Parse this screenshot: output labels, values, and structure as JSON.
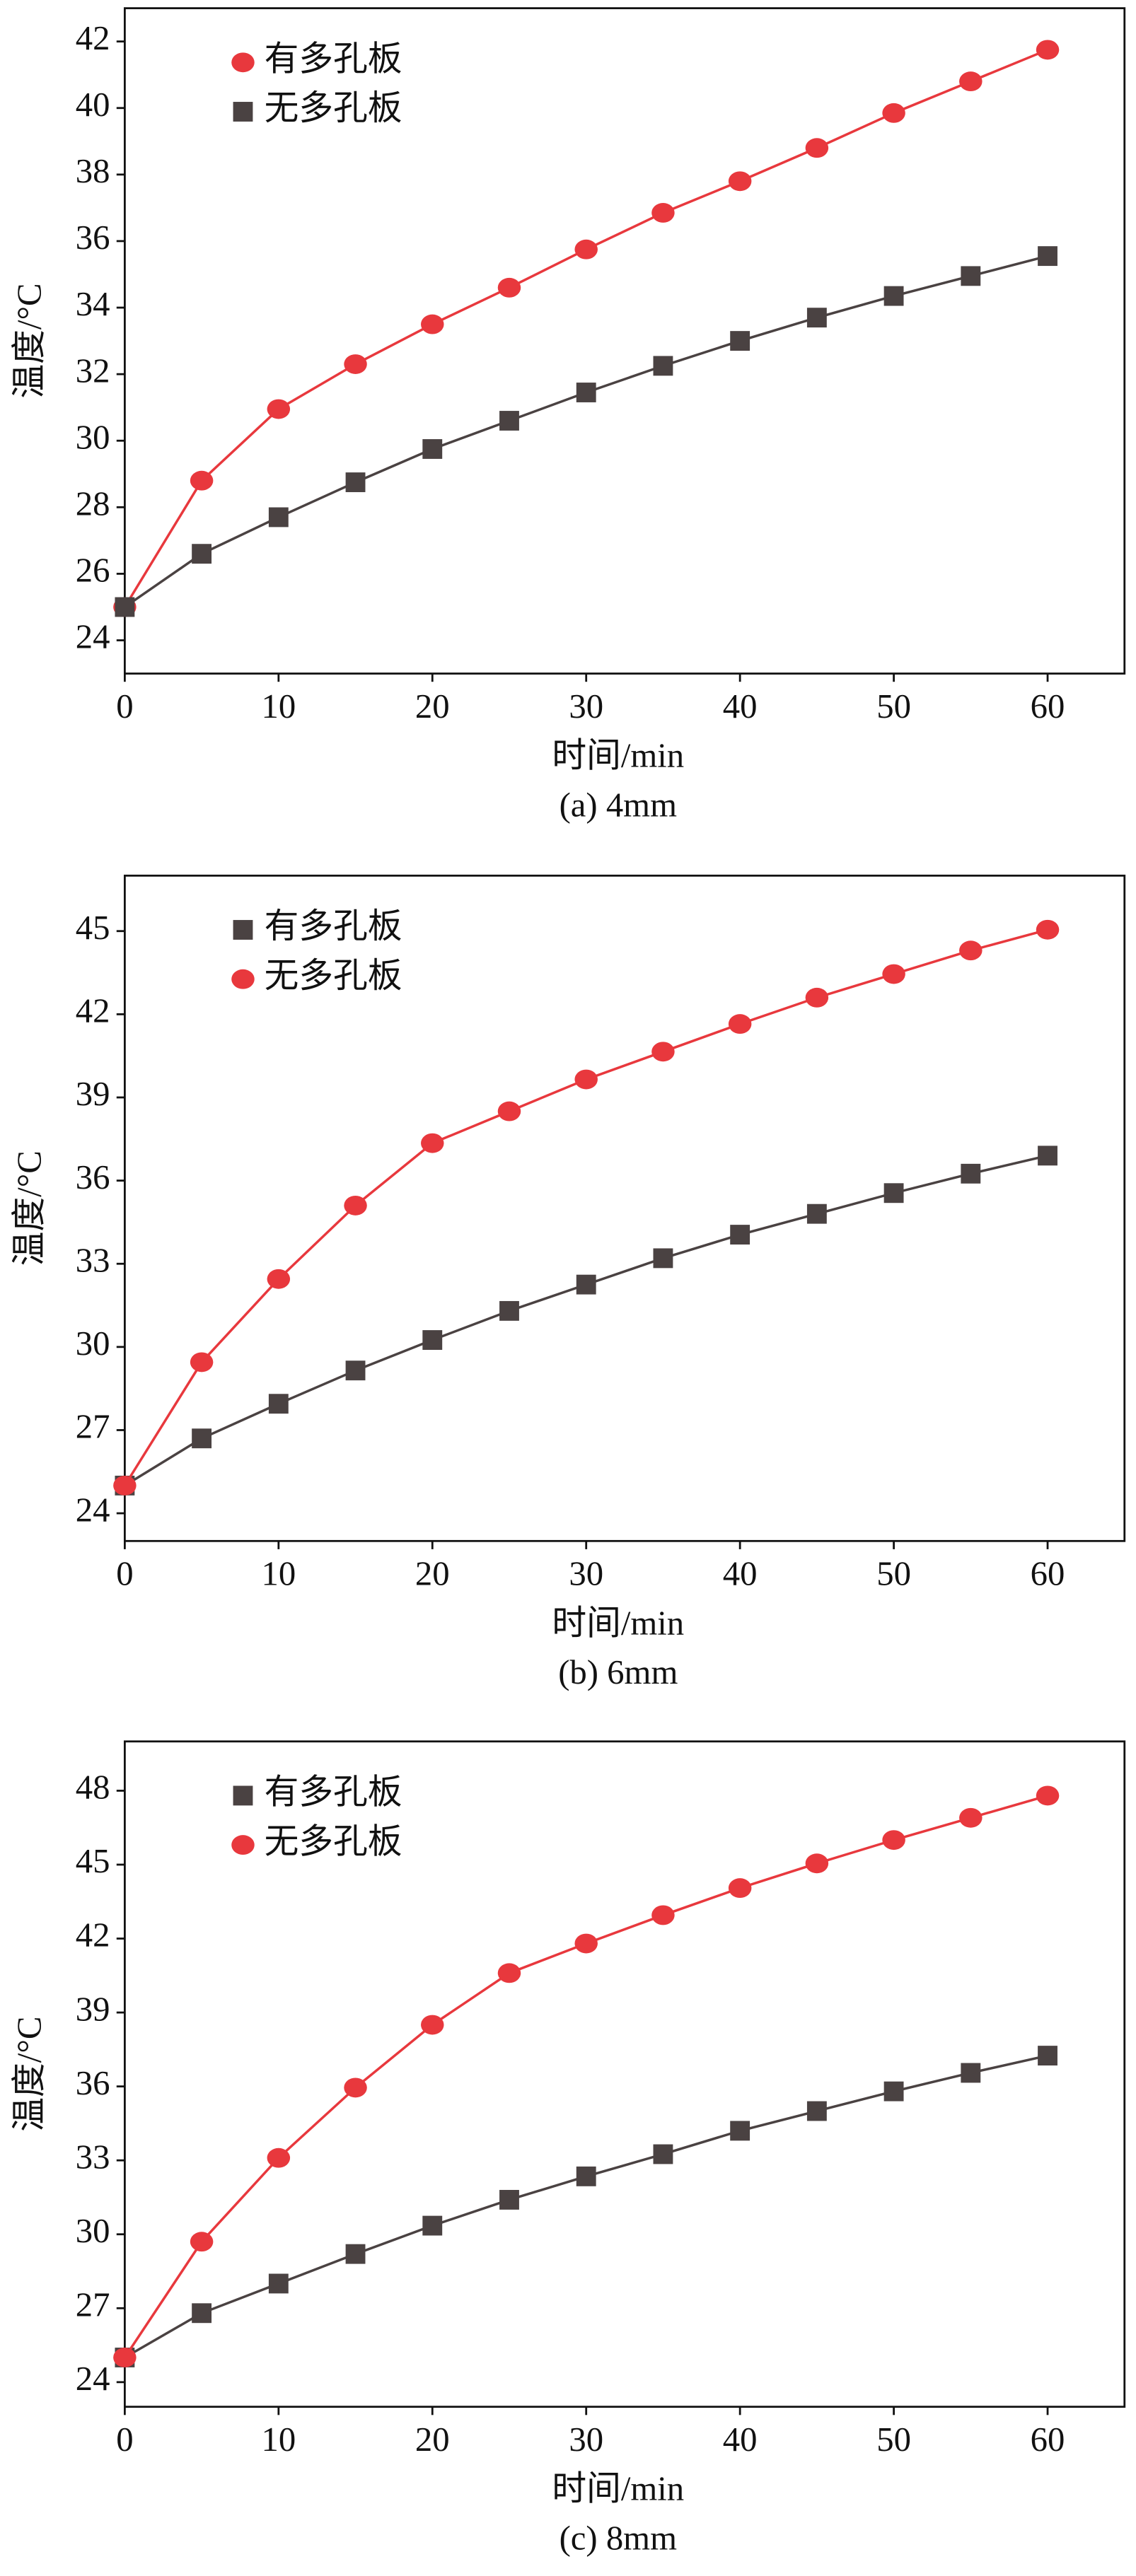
{
  "chart_data": [
    {
      "type": "line",
      "caption": "(a) 4mm",
      "xlabel": "时间/min",
      "ylabel": "温度/°C",
      "x": [
        0,
        5,
        10,
        15,
        20,
        25,
        30,
        35,
        40,
        45,
        50,
        55,
        60
      ],
      "xlim": [
        0,
        65
      ],
      "xticks": [
        0,
        10,
        20,
        30,
        40,
        50,
        60
      ],
      "ylim": [
        23,
        43
      ],
      "yticks": [
        24,
        26,
        28,
        30,
        32,
        34,
        36,
        38,
        40,
        42
      ],
      "series": [
        {
          "name": "有多孔板",
          "color": "#e8383d",
          "marker": "circle",
          "values": [
            25,
            28.8,
            30.95,
            32.3,
            33.5,
            34.6,
            35.75,
            36.85,
            37.8,
            38.8,
            39.85,
            40.8,
            41.75
          ]
        },
        {
          "name": "无多孔板",
          "color": "#4a4242",
          "marker": "square",
          "values": [
            25,
            26.6,
            27.7,
            28.75,
            29.75,
            30.6,
            31.45,
            32.25,
            33.0,
            33.7,
            34.35,
            34.95,
            35.55
          ]
        }
      ]
    },
    {
      "type": "line",
      "caption": "(b) 6mm",
      "xlabel": "时间/min",
      "ylabel": "温度/°C",
      "x": [
        0,
        5,
        10,
        15,
        20,
        25,
        30,
        35,
        40,
        45,
        50,
        55,
        60
      ],
      "xlim": [
        0,
        65
      ],
      "xticks": [
        0,
        10,
        20,
        30,
        40,
        50,
        60
      ],
      "ylim": [
        23,
        47
      ],
      "yticks": [
        24,
        27,
        30,
        33,
        36,
        39,
        42,
        45
      ],
      "series": [
        {
          "name": "有多孔板",
          "color": "#4a4242",
          "marker": "square",
          "values": [
            25,
            26.7,
            27.95,
            29.15,
            30.25,
            31.3,
            32.25,
            33.2,
            34.05,
            34.8,
            35.55,
            36.25,
            36.9
          ]
        },
        {
          "name": "无多孔板",
          "color": "#e8383d",
          "marker": "circle",
          "values": [
            25,
            29.45,
            32.45,
            35.1,
            37.35,
            38.5,
            39.65,
            40.65,
            41.65,
            42.6,
            43.45,
            44.3,
            45.05
          ]
        }
      ]
    },
    {
      "type": "line",
      "caption": "(c) 8mm",
      "xlabel": "时间/min",
      "ylabel": "温度/°C",
      "x": [
        0,
        5,
        10,
        15,
        20,
        25,
        30,
        35,
        40,
        45,
        50,
        55,
        60
      ],
      "xlim": [
        0,
        65
      ],
      "xticks": [
        0,
        10,
        20,
        30,
        40,
        50,
        60
      ],
      "ylim": [
        23,
        50
      ],
      "yticks": [
        24,
        27,
        30,
        33,
        36,
        39,
        42,
        45,
        48
      ],
      "series": [
        {
          "name": "有多孔板",
          "color": "#4a4242",
          "marker": "square",
          "values": [
            25,
            26.8,
            28.0,
            29.2,
            30.35,
            31.4,
            32.35,
            33.25,
            34.2,
            35.0,
            35.8,
            36.55,
            37.25
          ]
        },
        {
          "name": "无多孔板",
          "color": "#e8383d",
          "marker": "circle",
          "values": [
            25,
            29.7,
            33.1,
            35.95,
            38.5,
            40.6,
            41.8,
            42.95,
            44.05,
            45.05,
            46.0,
            46.9,
            47.8
          ]
        }
      ]
    }
  ]
}
